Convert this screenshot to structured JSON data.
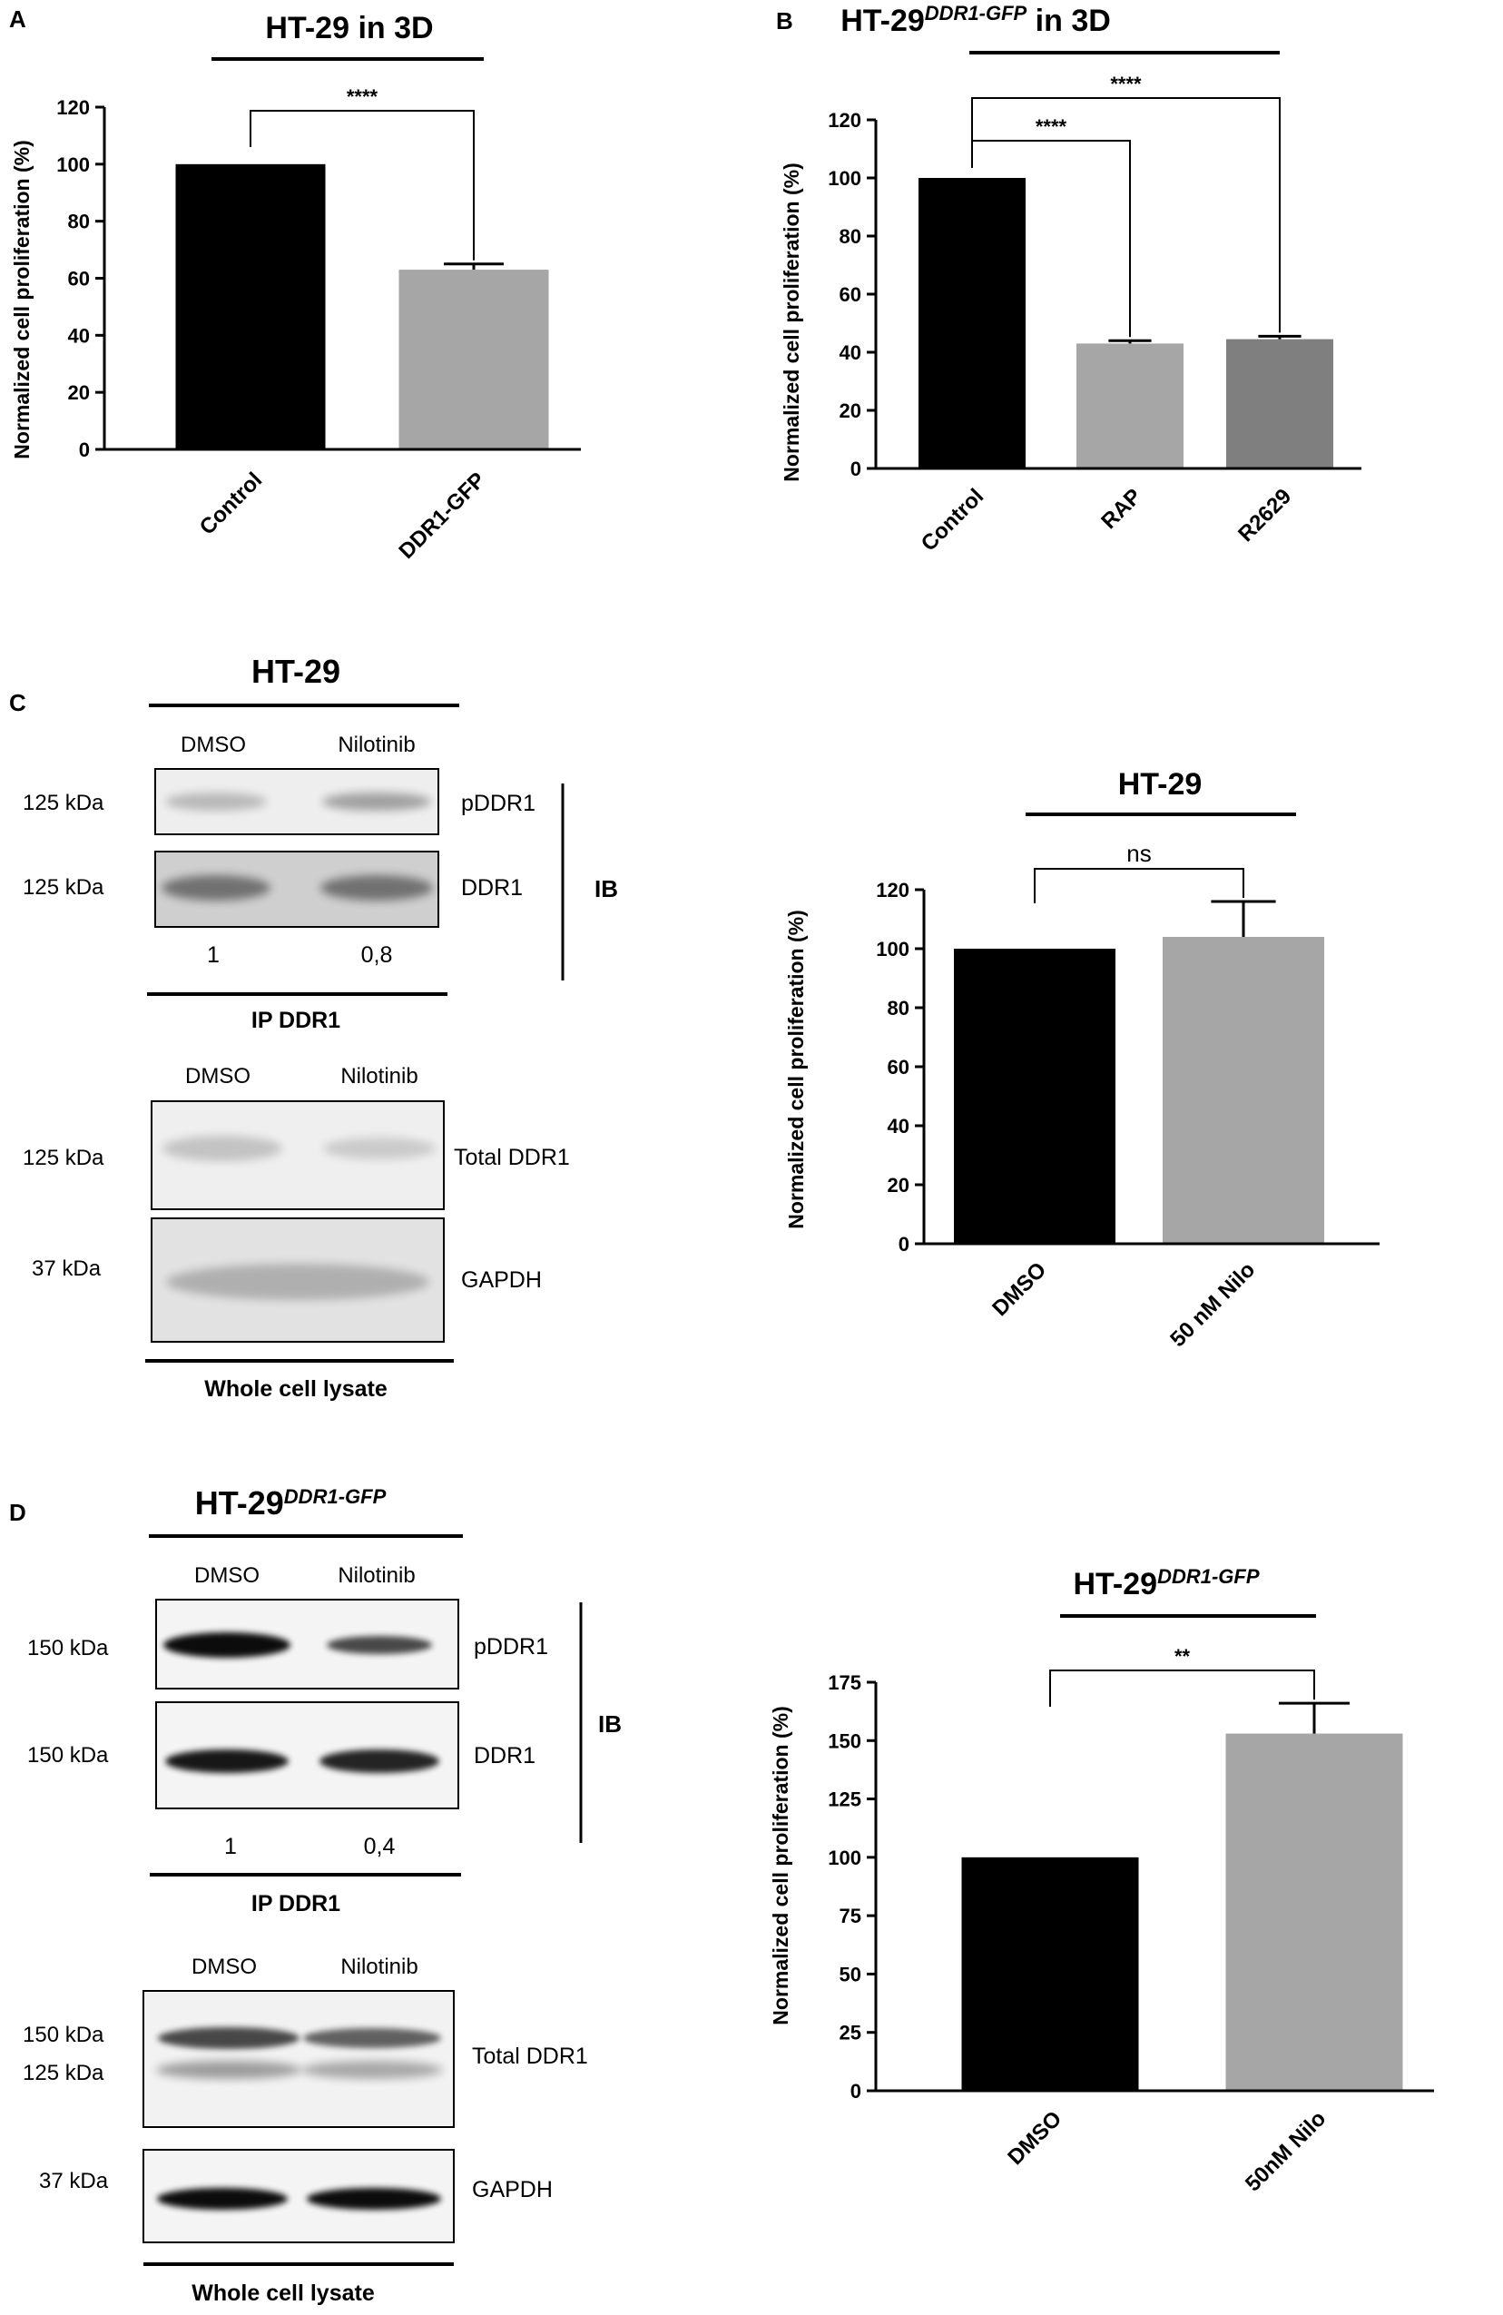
{
  "chart_data": [
    {
      "type": "bar",
      "panel": "A",
      "title": "HT-29  in 3D",
      "title_superscript": "",
      "ylabel": "Normalized cell proliferation (%)",
      "ylim": [
        0,
        120
      ],
      "yticks": [
        0,
        20,
        40,
        60,
        80,
        100,
        120
      ],
      "categories": [
        "Control",
        "DDR1-GFP"
      ],
      "values": [
        100,
        63
      ],
      "errors": [
        0,
        2
      ],
      "colors": [
        "#000000",
        "#a6a6a6"
      ],
      "significance": [
        {
          "from": 0,
          "to": 1,
          "label": "****"
        }
      ]
    },
    {
      "type": "bar",
      "panel": "B",
      "title": "HT-29",
      "title_superscript": "DDR1-GFP",
      "title_suffix": " in 3D",
      "ylabel": "Normalized cell proliferation (%)",
      "ylim": [
        0,
        120
      ],
      "yticks": [
        0,
        20,
        40,
        60,
        80,
        100,
        120
      ],
      "categories": [
        "Control",
        "RAP",
        "R2629"
      ],
      "values": [
        100,
        43,
        44.5
      ],
      "errors": [
        0,
        1,
        1
      ],
      "colors": [
        "#000000",
        "#a6a6a6",
        "#7f7f7f"
      ],
      "significance": [
        {
          "from": 0,
          "to": 1,
          "label": "****"
        },
        {
          "from": 0,
          "to": 2,
          "label": "****"
        }
      ]
    },
    {
      "type": "bar",
      "panel": "C",
      "title": "HT-29",
      "title_superscript": "",
      "ylabel": "Normalized cell proliferation (%)",
      "ylim": [
        0,
        120
      ],
      "yticks": [
        0,
        20,
        40,
        60,
        80,
        100,
        120
      ],
      "categories": [
        "DMSO",
        "50 nM Nilo"
      ],
      "values": [
        100,
        104
      ],
      "errors": [
        0,
        12
      ],
      "colors": [
        "#000000",
        "#a6a6a6"
      ],
      "significance": [
        {
          "from": 0,
          "to": 1,
          "label": "ns"
        }
      ]
    },
    {
      "type": "bar",
      "panel": "D",
      "title": "HT-29",
      "title_superscript": "DDR1-GFP",
      "ylabel": "Normalized cell proliferation (%)",
      "ylim": [
        0,
        175
      ],
      "yticks": [
        0,
        25,
        50,
        75,
        100,
        125,
        150,
        175
      ],
      "categories": [
        "DMSO",
        "50nM Nilo"
      ],
      "values": [
        100,
        153
      ],
      "errors": [
        0,
        13
      ],
      "colors": [
        "#000000",
        "#a6a6a6"
      ],
      "significance": [
        {
          "from": 0,
          "to": 1,
          "label": "**"
        }
      ]
    }
  ],
  "blots": [
    {
      "panel": "C",
      "title": "HT-29",
      "title_superscript": "",
      "ip": {
        "lanes": [
          "DMSO",
          "Nilotinib"
        ],
        "bands": [
          {
            "label": "pDDR1",
            "mw": "125 kDa",
            "intensity": [
              0.22,
              0.32
            ]
          },
          {
            "label": "DDR1",
            "mw": "125 kDa",
            "intensity": [
              0.45,
              0.45
            ]
          }
        ],
        "quant": [
          "1",
          "0,8"
        ],
        "footer": "IP DDR1",
        "ib_label": "IB"
      },
      "lysate": {
        "lanes": [
          "DMSO",
          "Nilotinib"
        ],
        "bands": [
          {
            "label": "Total DDR1",
            "mw": "125 kDa",
            "intensity": [
              0.18,
              0.15
            ]
          },
          {
            "label": "GAPDH",
            "mw": "37 kDa",
            "intensity": [
              0.22,
              0.22
            ]
          }
        ],
        "footer": "Whole cell lysate"
      }
    },
    {
      "panel": "D",
      "title": "HT-29",
      "title_superscript": "DDR1-GFP",
      "ip": {
        "lanes": [
          "DMSO",
          "Nilotinib"
        ],
        "bands": [
          {
            "label": "pDDR1",
            "mw": "150 kDa",
            "intensity": [
              0.95,
              0.7
            ]
          },
          {
            "label": "DDR1",
            "mw": "150 kDa",
            "intensity": [
              0.9,
              0.85
            ]
          }
        ],
        "quant": [
          "1",
          "0,4"
        ],
        "footer": "IP DDR1",
        "ib_label": "IB"
      },
      "lysate": {
        "lanes": [
          "DMSO",
          "Nilotinib"
        ],
        "bands": [
          {
            "label": "Total DDR1",
            "mw": "150 kDa",
            "mw2": "125 kDa",
            "intensity": [
              0.7,
              0.6
            ]
          },
          {
            "label": "GAPDH",
            "mw": "37 kDa",
            "intensity": [
              0.95,
              0.95
            ]
          }
        ],
        "footer": "Whole cell lysate"
      }
    }
  ]
}
